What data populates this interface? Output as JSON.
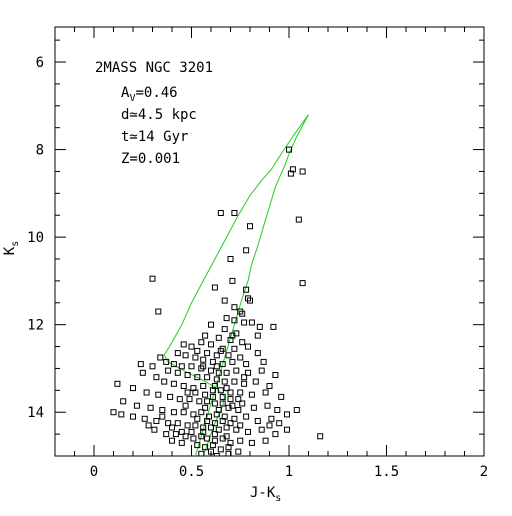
{
  "chart_data": {
    "type": "scatter",
    "title": "2MASS NGC 3201",
    "xlabel": "J-K",
    "xlabel_sub": "s",
    "ylabel": "K",
    "ylabel_sub": "s",
    "xlim": [
      -0.2,
      2.0
    ],
    "ylim": [
      15.0,
      5.2
    ],
    "y_inverted": true,
    "grid": false,
    "x_ticks": [
      0,
      0.5,
      1,
      1.5,
      2
    ],
    "x_tick_labels": [
      "0",
      "0.5",
      "1",
      "1.5",
      "2"
    ],
    "y_ticks": [
      6,
      8,
      10,
      12,
      14
    ],
    "y_tick_labels": [
      "6",
      "8",
      "10",
      "12",
      "14"
    ],
    "annotations": [
      {
        "text": "A",
        "sub": "V",
        "suffix": "=0.46"
      },
      {
        "text": "d≃4.5 kpc"
      },
      {
        "text": "t≃14 Gyr"
      },
      {
        "text": "Z=0.001"
      }
    ],
    "series": [
      {
        "kind": "stars",
        "marker": "open-square",
        "color": "#000000",
        "points": [
          [
            1.0,
            8.0
          ],
          [
            1.01,
            8.55
          ],
          [
            1.02,
            8.45
          ],
          [
            1.07,
            8.5
          ],
          [
            1.05,
            9.6
          ],
          [
            1.07,
            11.05
          ],
          [
            0.65,
            9.45
          ],
          [
            0.72,
            9.45
          ],
          [
            0.8,
            9.75
          ],
          [
            0.3,
            10.95
          ],
          [
            0.33,
            11.7
          ],
          [
            0.78,
            10.3
          ],
          [
            0.7,
            10.5
          ],
          [
            0.71,
            11.0
          ],
          [
            0.62,
            11.15
          ],
          [
            0.78,
            11.2
          ],
          [
            0.8,
            11.45
          ],
          [
            0.72,
            11.6
          ],
          [
            0.75,
            11.7
          ],
          [
            0.79,
            11.4
          ],
          [
            0.68,
            11.85
          ],
          [
            0.72,
            11.9
          ],
          [
            0.77,
            11.95
          ],
          [
            0.6,
            12.0
          ],
          [
            0.67,
            12.1
          ],
          [
            0.73,
            12.2
          ],
          [
            0.81,
            11.95
          ],
          [
            0.85,
            12.05
          ],
          [
            0.84,
            12.25
          ],
          [
            0.92,
            12.05
          ],
          [
            0.57,
            12.25
          ],
          [
            0.64,
            12.3
          ],
          [
            0.7,
            12.35
          ],
          [
            0.76,
            12.4
          ],
          [
            0.55,
            12.4
          ],
          [
            0.6,
            12.45
          ],
          [
            0.66,
            12.55
          ],
          [
            0.72,
            12.55
          ],
          [
            0.79,
            12.5
          ],
          [
            0.46,
            12.45
          ],
          [
            0.5,
            12.5
          ],
          [
            0.53,
            12.6
          ],
          [
            0.58,
            12.65
          ],
          [
            0.63,
            12.7
          ],
          [
            0.69,
            12.7
          ],
          [
            0.75,
            12.75
          ],
          [
            0.84,
            12.65
          ],
          [
            0.43,
            12.65
          ],
          [
            0.47,
            12.7
          ],
          [
            0.52,
            12.75
          ],
          [
            0.56,
            12.8
          ],
          [
            0.61,
            12.85
          ],
          [
            0.66,
            12.9
          ],
          [
            0.71,
            12.85
          ],
          [
            0.78,
            12.9
          ],
          [
            0.87,
            12.85
          ],
          [
            0.34,
            12.75
          ],
          [
            0.37,
            12.85
          ],
          [
            0.41,
            12.9
          ],
          [
            0.45,
            12.95
          ],
          [
            0.5,
            12.95
          ],
          [
            0.55,
            13.0
          ],
          [
            0.6,
            13.05
          ],
          [
            0.64,
            13.1
          ],
          [
            0.68,
            13.1
          ],
          [
            0.73,
            13.05
          ],
          [
            0.79,
            13.1
          ],
          [
            0.86,
            13.05
          ],
          [
            0.93,
            13.15
          ],
          [
            0.24,
            12.9
          ],
          [
            0.3,
            12.95
          ],
          [
            0.38,
            13.05
          ],
          [
            0.43,
            13.1
          ],
          [
            0.48,
            13.15
          ],
          [
            0.53,
            13.2
          ],
          [
            0.58,
            13.2
          ],
          [
            0.63,
            13.25
          ],
          [
            0.67,
            13.3
          ],
          [
            0.72,
            13.3
          ],
          [
            0.77,
            13.35
          ],
          [
            0.83,
            13.3
          ],
          [
            0.9,
            13.4
          ],
          [
            0.25,
            13.1
          ],
          [
            0.32,
            13.2
          ],
          [
            0.36,
            13.3
          ],
          [
            0.41,
            13.35
          ],
          [
            0.46,
            13.4
          ],
          [
            0.51,
            13.45
          ],
          [
            0.56,
            13.4
          ],
          [
            0.61,
            13.5
          ],
          [
            0.65,
            13.5
          ],
          [
            0.7,
            13.55
          ],
          [
            0.75,
            13.55
          ],
          [
            0.81,
            13.6
          ],
          [
            0.88,
            13.55
          ],
          [
            0.96,
            13.65
          ],
          [
            0.12,
            13.35
          ],
          [
            0.2,
            13.45
          ],
          [
            0.27,
            13.55
          ],
          [
            0.33,
            13.6
          ],
          [
            0.39,
            13.65
          ],
          [
            0.44,
            13.7
          ],
          [
            0.49,
            13.7
          ],
          [
            0.54,
            13.75
          ],
          [
            0.58,
            13.75
          ],
          [
            0.62,
            13.8
          ],
          [
            0.66,
            13.8
          ],
          [
            0.71,
            13.85
          ],
          [
            0.76,
            13.8
          ],
          [
            0.82,
            13.9
          ],
          [
            0.89,
            13.85
          ],
          [
            0.94,
            13.95
          ],
          [
            0.15,
            13.75
          ],
          [
            0.22,
            13.85
          ],
          [
            0.29,
            13.9
          ],
          [
            0.35,
            13.95
          ],
          [
            0.41,
            14.0
          ],
          [
            0.46,
            14.0
          ],
          [
            0.51,
            14.05
          ],
          [
            0.55,
            14.0
          ],
          [
            0.59,
            14.1
          ],
          [
            0.63,
            14.05
          ],
          [
            0.67,
            14.1
          ],
          [
            0.72,
            14.15
          ],
          [
            0.78,
            14.1
          ],
          [
            0.84,
            14.2
          ],
          [
            0.91,
            14.15
          ],
          [
            0.99,
            14.05
          ],
          [
            1.04,
            13.95
          ],
          [
            0.1,
            14.0
          ],
          [
            0.14,
            14.05
          ],
          [
            0.2,
            14.1
          ],
          [
            0.26,
            14.15
          ],
          [
            0.32,
            14.2
          ],
          [
            0.38,
            14.25
          ],
          [
            0.43,
            14.25
          ],
          [
            0.48,
            14.3
          ],
          [
            0.52,
            14.3
          ],
          [
            0.56,
            14.35
          ],
          [
            0.6,
            14.35
          ],
          [
            0.64,
            14.4
          ],
          [
            0.68,
            14.35
          ],
          [
            0.73,
            14.4
          ],
          [
            0.79,
            14.45
          ],
          [
            0.86,
            14.4
          ],
          [
            0.93,
            14.5
          ],
          [
            0.31,
            14.4
          ],
          [
            0.37,
            14.5
          ],
          [
            0.42,
            14.5
          ],
          [
            0.47,
            14.55
          ],
          [
            0.51,
            14.6
          ],
          [
            0.55,
            14.55
          ],
          [
            0.58,
            14.6
          ],
          [
            0.62,
            14.65
          ],
          [
            0.66,
            14.6
          ],
          [
            0.7,
            14.7
          ],
          [
            0.75,
            14.65
          ],
          [
            0.81,
            14.7
          ],
          [
            0.88,
            14.65
          ],
          [
            0.99,
            14.4
          ],
          [
            1.16,
            14.55
          ],
          [
            0.4,
            14.65
          ],
          [
            0.45,
            14.7
          ],
          [
            0.53,
            14.75
          ],
          [
            0.57,
            14.8
          ],
          [
            0.61,
            14.75
          ],
          [
            0.65,
            14.85
          ],
          [
            0.69,
            14.8
          ],
          [
            0.74,
            14.9
          ],
          [
            0.55,
            14.95
          ],
          [
            0.6,
            14.9
          ],
          [
            0.63,
            15.0
          ],
          [
            0.69,
            14.95
          ],
          [
            0.52,
            13.55
          ],
          [
            0.57,
            13.6
          ],
          [
            0.61,
            13.65
          ],
          [
            0.66,
            13.65
          ],
          [
            0.7,
            13.7
          ],
          [
            0.74,
            13.7
          ],
          [
            0.47,
            13.85
          ],
          [
            0.57,
            13.9
          ],
          [
            0.64,
            13.95
          ],
          [
            0.69,
            13.9
          ],
          [
            0.74,
            13.95
          ],
          [
            0.53,
            14.15
          ],
          [
            0.58,
            14.2
          ],
          [
            0.62,
            14.25
          ],
          [
            0.66,
            14.2
          ],
          [
            0.7,
            14.25
          ],
          [
            0.75,
            14.3
          ],
          [
            0.65,
            12.6
          ],
          [
            0.71,
            12.25
          ],
          [
            0.67,
            11.45
          ],
          [
            0.76,
            11.75
          ],
          [
            0.62,
            13.4
          ],
          [
            0.56,
            14.45
          ],
          [
            0.62,
            14.5
          ],
          [
            0.68,
            14.55
          ],
          [
            0.9,
            14.3
          ],
          [
            0.95,
            14.25
          ],
          [
            0.45,
            14.45
          ],
          [
            0.4,
            14.35
          ],
          [
            0.35,
            14.1
          ],
          [
            0.28,
            14.3
          ],
          [
            0.5,
            14.45
          ],
          [
            0.48,
            13.55
          ],
          [
            0.68,
            13.45
          ],
          [
            0.77,
            13.2
          ],
          [
            0.56,
            12.95
          ],
          [
            0.63,
            12.95
          ]
        ]
      },
      {
        "kind": "isochrone",
        "color": "#22cc22",
        "points": [
          [
            0.52,
            15.0
          ],
          [
            0.54,
            14.7
          ],
          [
            0.56,
            14.4
          ],
          [
            0.58,
            14.1
          ],
          [
            0.6,
            13.8
          ],
          [
            0.62,
            13.5
          ],
          [
            0.64,
            13.2
          ],
          [
            0.66,
            12.9
          ],
          [
            0.68,
            12.6
          ],
          [
            0.7,
            12.3
          ],
          [
            0.72,
            12.0
          ],
          [
            0.74,
            11.7
          ],
          [
            0.76,
            11.4
          ],
          [
            0.79,
            11.0
          ],
          [
            0.81,
            10.6
          ],
          [
            0.84,
            10.2
          ],
          [
            0.87,
            9.75
          ],
          [
            0.9,
            9.3
          ],
          [
            0.93,
            8.85
          ],
          [
            0.96,
            8.55
          ],
          [
            0.98,
            8.35
          ],
          [
            1.0,
            8.1
          ],
          [
            1.04,
            7.7
          ],
          [
            1.1,
            7.2
          ]
        ]
      },
      {
        "kind": "isochrone",
        "color": "#22cc22",
        "points": [
          [
            0.56,
            15.0
          ],
          [
            0.58,
            14.75
          ],
          [
            0.6,
            14.5
          ],
          [
            0.62,
            14.25
          ],
          [
            0.64,
            14.05
          ],
          [
            0.66,
            13.85
          ],
          [
            0.67,
            13.65
          ],
          [
            0.63,
            13.45
          ],
          [
            0.55,
            13.25
          ],
          [
            0.46,
            13.05
          ],
          [
            0.38,
            12.85
          ],
          [
            0.36,
            12.7
          ],
          [
            0.4,
            12.4
          ],
          [
            0.45,
            12.0
          ],
          [
            0.5,
            11.5
          ],
          [
            0.56,
            11.0
          ],
          [
            0.62,
            10.5
          ],
          [
            0.68,
            10.0
          ],
          [
            0.74,
            9.5
          ],
          [
            0.8,
            9.05
          ],
          [
            0.86,
            8.7
          ],
          [
            0.91,
            8.45
          ],
          [
            0.96,
            8.1
          ],
          [
            1.02,
            7.7
          ],
          [
            1.1,
            7.2
          ]
        ]
      }
    ]
  }
}
